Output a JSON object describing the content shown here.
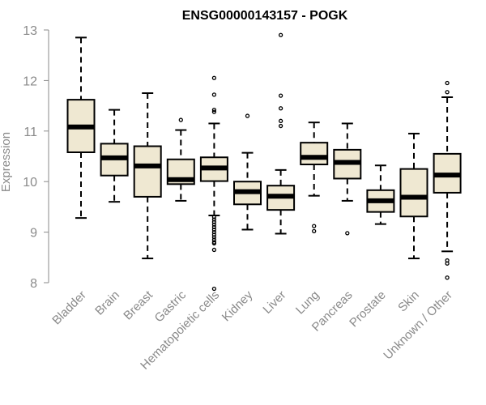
{
  "chart_data": {
    "type": "boxplot",
    "title": "ENSG00000143157 - POGK",
    "ylabel": "Expression",
    "xlabel": "",
    "ylim": [
      8,
      13
    ],
    "yticks": [
      8,
      9,
      10,
      11,
      12,
      13
    ],
    "grid": false,
    "colors": {
      "box_fill": "#efe8d2",
      "stroke": "#000000",
      "axis": "#8a8a8a"
    },
    "categories": [
      "Bladder",
      "Brain",
      "Breast",
      "Gastric",
      "Hematopoietic cells",
      "Kidney",
      "Liver",
      "Lung",
      "Pancreas",
      "Prostate",
      "Skin",
      "Unknown / Other"
    ],
    "boxes": [
      {
        "label": "Bladder",
        "whisker_low": 9.28,
        "q1": 10.58,
        "median": 11.08,
        "q3": 11.62,
        "whisker_high": 12.85,
        "outliers": []
      },
      {
        "label": "Brain",
        "whisker_low": 9.6,
        "q1": 10.12,
        "median": 10.47,
        "q3": 10.75,
        "whisker_high": 11.42,
        "outliers": []
      },
      {
        "label": "Breast",
        "whisker_low": 8.48,
        "q1": 9.7,
        "median": 10.31,
        "q3": 10.7,
        "whisker_high": 11.75,
        "outliers": []
      },
      {
        "label": "Gastric",
        "whisker_low": 9.62,
        "q1": 9.95,
        "median": 10.04,
        "q3": 10.44,
        "whisker_high": 11.02,
        "outliers": [
          11.22
        ]
      },
      {
        "label": "Hematopoietic cells",
        "whisker_low": 9.33,
        "q1": 10.01,
        "median": 10.27,
        "q3": 10.48,
        "whisker_high": 11.15,
        "outliers": [
          12.05,
          11.72,
          11.42,
          11.38,
          9.3,
          9.25,
          9.2,
          9.15,
          9.1,
          9.05,
          9.0,
          8.95,
          8.9,
          8.85,
          8.8,
          8.78,
          8.65,
          7.88
        ]
      },
      {
        "label": "Kidney",
        "whisker_low": 9.05,
        "q1": 9.55,
        "median": 9.8,
        "q3": 10.0,
        "whisker_high": 10.57,
        "outliers": [
          11.3
        ]
      },
      {
        "label": "Liver",
        "whisker_low": 8.97,
        "q1": 9.44,
        "median": 9.71,
        "q3": 9.92,
        "whisker_high": 10.23,
        "outliers": [
          12.9,
          11.7,
          11.45,
          11.2,
          11.1
        ]
      },
      {
        "label": "Lung",
        "whisker_low": 9.72,
        "q1": 10.34,
        "median": 10.48,
        "q3": 10.77,
        "whisker_high": 11.17,
        "outliers": [
          9.12,
          9.02
        ]
      },
      {
        "label": "Pancreas",
        "whisker_low": 9.62,
        "q1": 10.06,
        "median": 10.38,
        "q3": 10.63,
        "whisker_high": 11.15,
        "outliers": [
          8.98
        ]
      },
      {
        "label": "Prostate",
        "whisker_low": 9.16,
        "q1": 9.4,
        "median": 9.62,
        "q3": 9.83,
        "whisker_high": 10.32,
        "outliers": []
      },
      {
        "label": "Skin",
        "whisker_low": 8.48,
        "q1": 9.31,
        "median": 9.69,
        "q3": 10.25,
        "whisker_high": 10.95,
        "outliers": []
      },
      {
        "label": "Unknown / Other",
        "whisker_low": 8.62,
        "q1": 9.78,
        "median": 10.13,
        "q3": 10.55,
        "whisker_high": 11.67,
        "outliers": [
          11.95,
          11.77,
          8.44,
          8.38,
          8.1
        ]
      }
    ]
  }
}
